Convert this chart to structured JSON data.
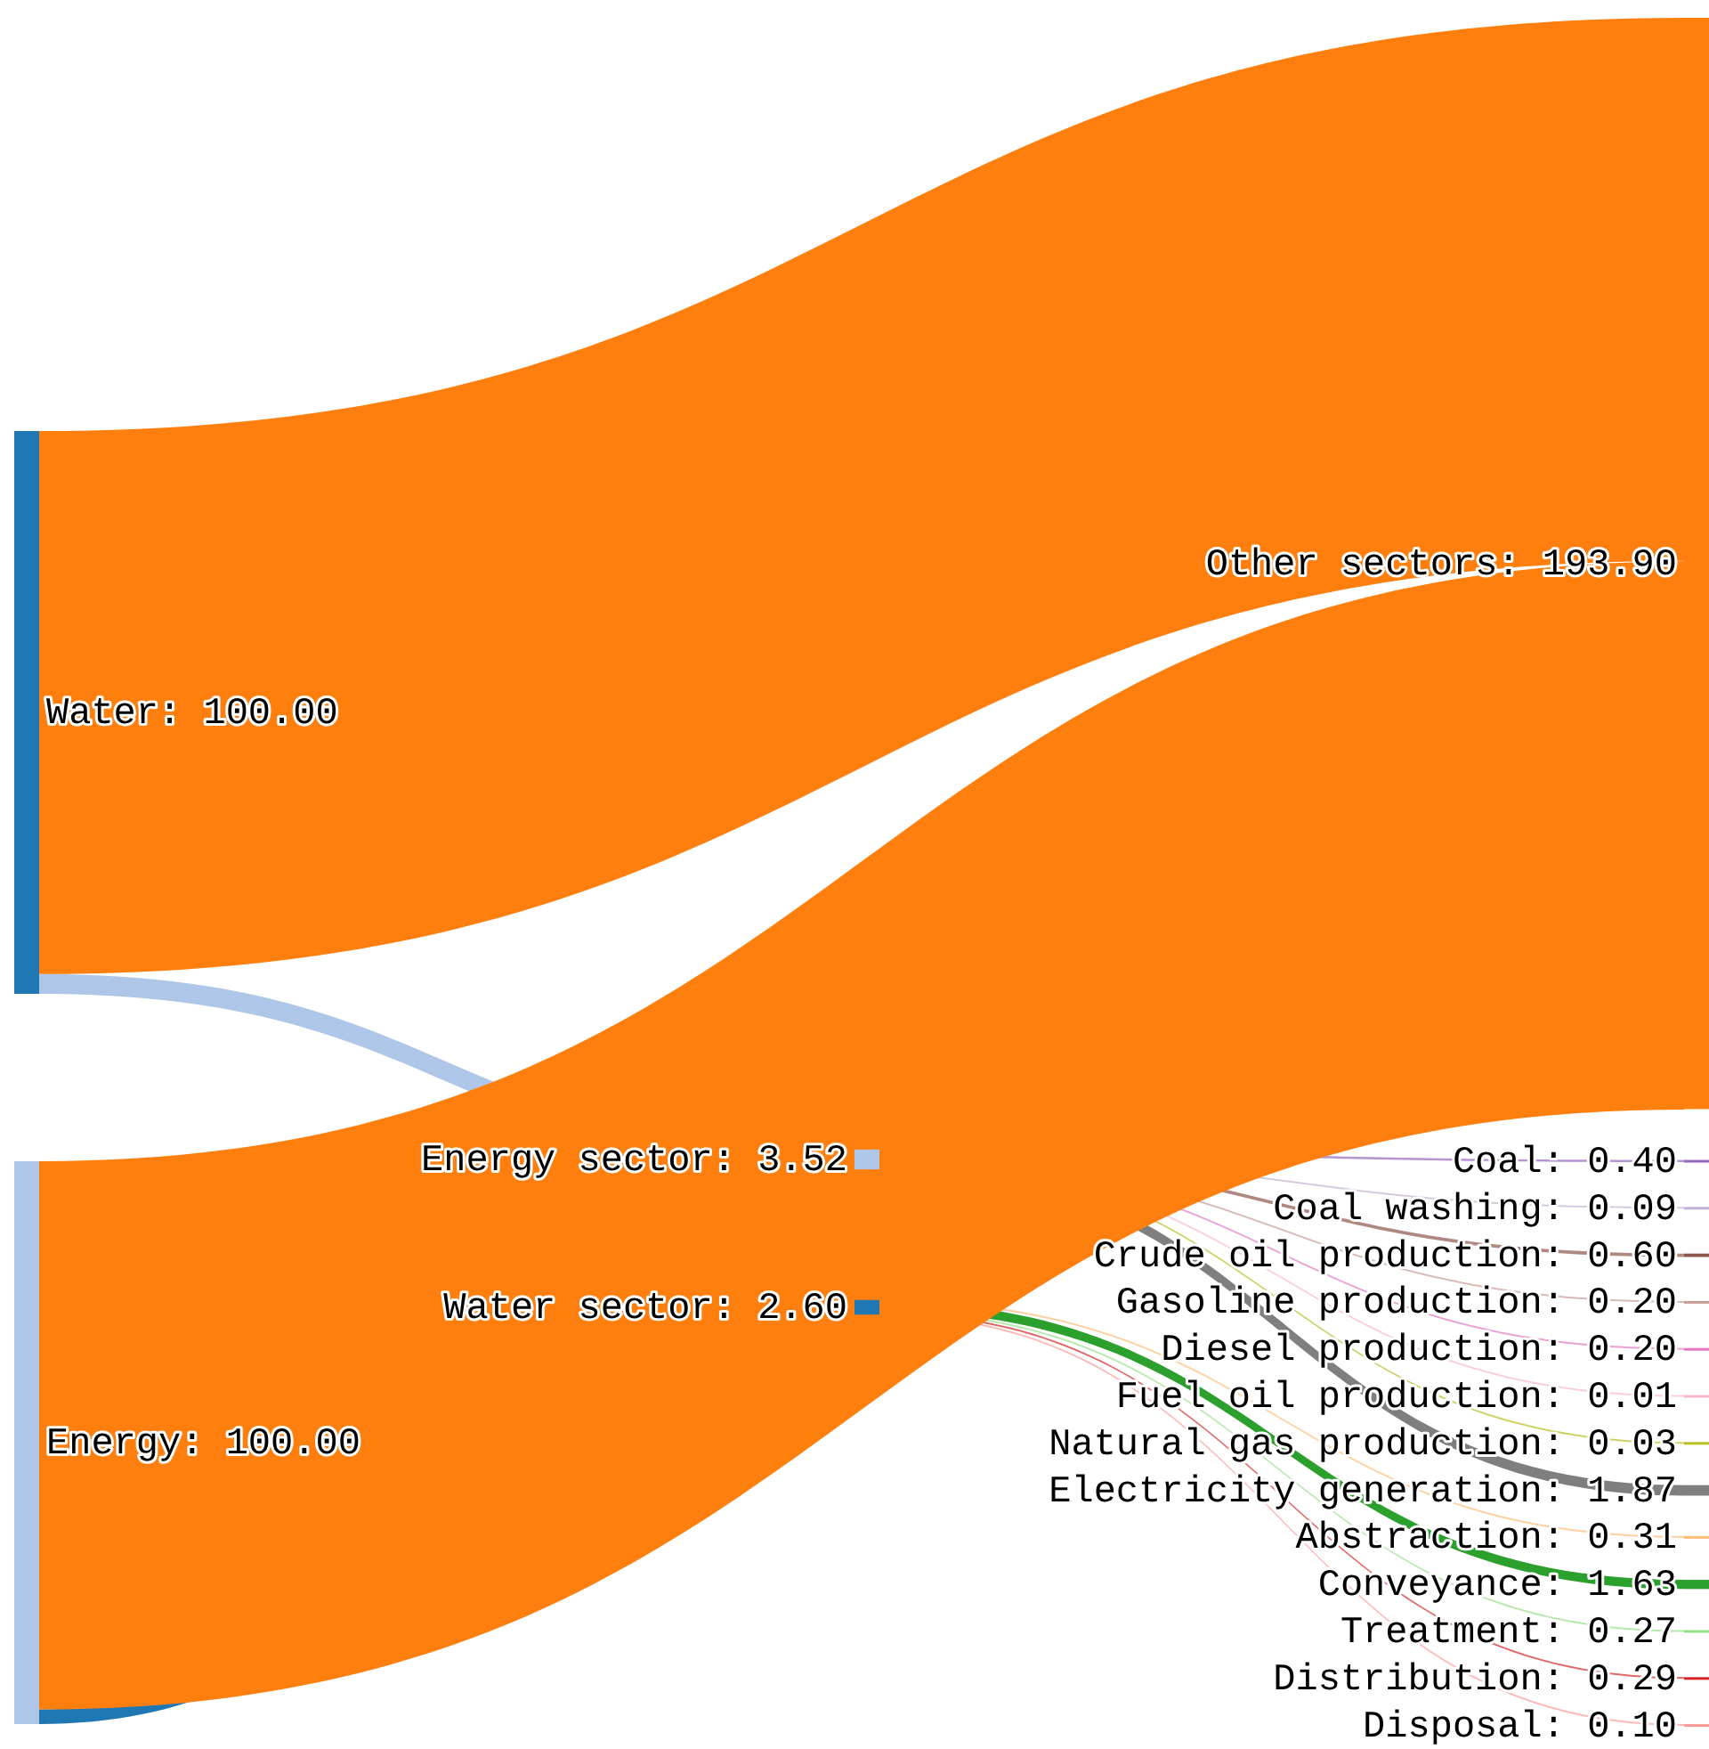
{
  "chart_data": {
    "type": "other",
    "categories": [
      "Water",
      "Energy",
      "Energy sector",
      "Water sector",
      "Other sectors",
      "Coal",
      "Coal washing",
      "Crude oil production",
      "Gasoline production",
      "Diesel production",
      "Fuel oil production",
      "Natural gas production",
      "Electricity generation",
      "Abstraction",
      "Conveyance",
      "Treatment",
      "Distribution",
      "Disposal"
    ],
    "values": [
      100,
      100,
      3.52,
      2.6,
      193.9,
      0.4,
      0.09,
      0.6,
      0.2,
      0.2,
      0.01,
      0.03,
      1.87,
      0.31,
      1.63,
      0.27,
      0.29,
      0.1
    ],
    "value_labels": [
      ": 100.00",
      ": 100.00",
      ": 3.52",
      ": 2.60",
      ": 193.90",
      ": 0.40",
      ": 0.09",
      ": 0.60",
      ": 0.20",
      ": 0.20",
      ": 0.01",
      ": 0.03",
      ": 1.87",
      ": 0.31",
      ": 1.63",
      ": 0.27",
      ": 0.29",
      ": 0.10"
    ],
    "colors": [
      "#1f77b4",
      "#aec7e8",
      "#aec7e8",
      "#1f77b4",
      "#ff7f0e",
      "#9467bd",
      "#c5b0d5",
      "#8c564b",
      "#c49c94",
      "#e377c2",
      "#f7b6d2",
      "#bcbd22",
      "#7f7f7f",
      "#ffbb78",
      "#2ca02c",
      "#98df8a",
      "#d62728",
      "#ff9896"
    ],
    "series": [
      {
        "values": [
          null,
          null,
          true,
          null,
          null,
          null,
          null,
          null,
          null,
          null,
          null,
          null,
          null,
          null,
          null,
          null,
          null,
          null
        ]
      },
      {
        "values": [
          null,
          null,
          null,
          true,
          null,
          null,
          null,
          null,
          null,
          null,
          null,
          null,
          null,
          null,
          null,
          null,
          null,
          null
        ]
      },
      {
        "values": [
          null,
          null,
          null,
          null,
          null,
          true,
          true,
          true,
          true,
          true,
          true,
          true,
          true,
          null,
          null,
          null,
          null,
          null
        ]
      },
      {
        "values": [
          null,
          null,
          null,
          null,
          null,
          null,
          null,
          null,
          null,
          null,
          null,
          null,
          null,
          true,
          true,
          true,
          true,
          true
        ]
      }
    ]
  }
}
